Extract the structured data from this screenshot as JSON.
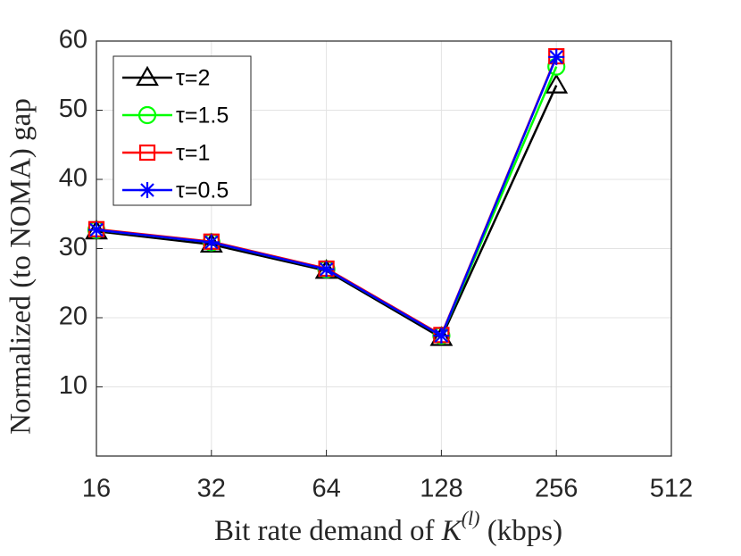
{
  "chart_data": {
    "type": "line",
    "ylabel": "Normalized (to NOMA) gap",
    "xlabel": [
      "Bit rate demand of ",
      "K",
      "(l)",
      " (kbps)"
    ],
    "x": [
      16,
      32,
      64,
      128,
      256
    ],
    "series": [
      {
        "name": "τ=2",
        "color": "#000000",
        "marker": "triangle",
        "values": [
          32.5,
          30.6,
          26.8,
          17.1,
          53.6
        ]
      },
      {
        "name": "τ=1.5",
        "color": "#00ff00",
        "marker": "circle",
        "values": [
          32.7,
          30.9,
          27.0,
          17.4,
          56.3
        ]
      },
      {
        "name": "τ=1",
        "color": "#ff0000",
        "marker": "square",
        "values": [
          32.8,
          31.0,
          27.1,
          17.5,
          57.8
        ]
      },
      {
        "name": "τ=0.5",
        "color": "#0000ff",
        "marker": "asterisk",
        "values": [
          32.7,
          30.9,
          27.0,
          17.4,
          57.7
        ]
      }
    ],
    "xlim": [
      16,
      512
    ],
    "xticks": [
      16,
      32,
      64,
      128,
      256,
      512
    ],
    "xscale": "log2",
    "ylim": [
      0,
      60
    ],
    "yticks": [
      10,
      20,
      30,
      40,
      50,
      60
    ],
    "grid": true,
    "legend": "upper left"
  }
}
